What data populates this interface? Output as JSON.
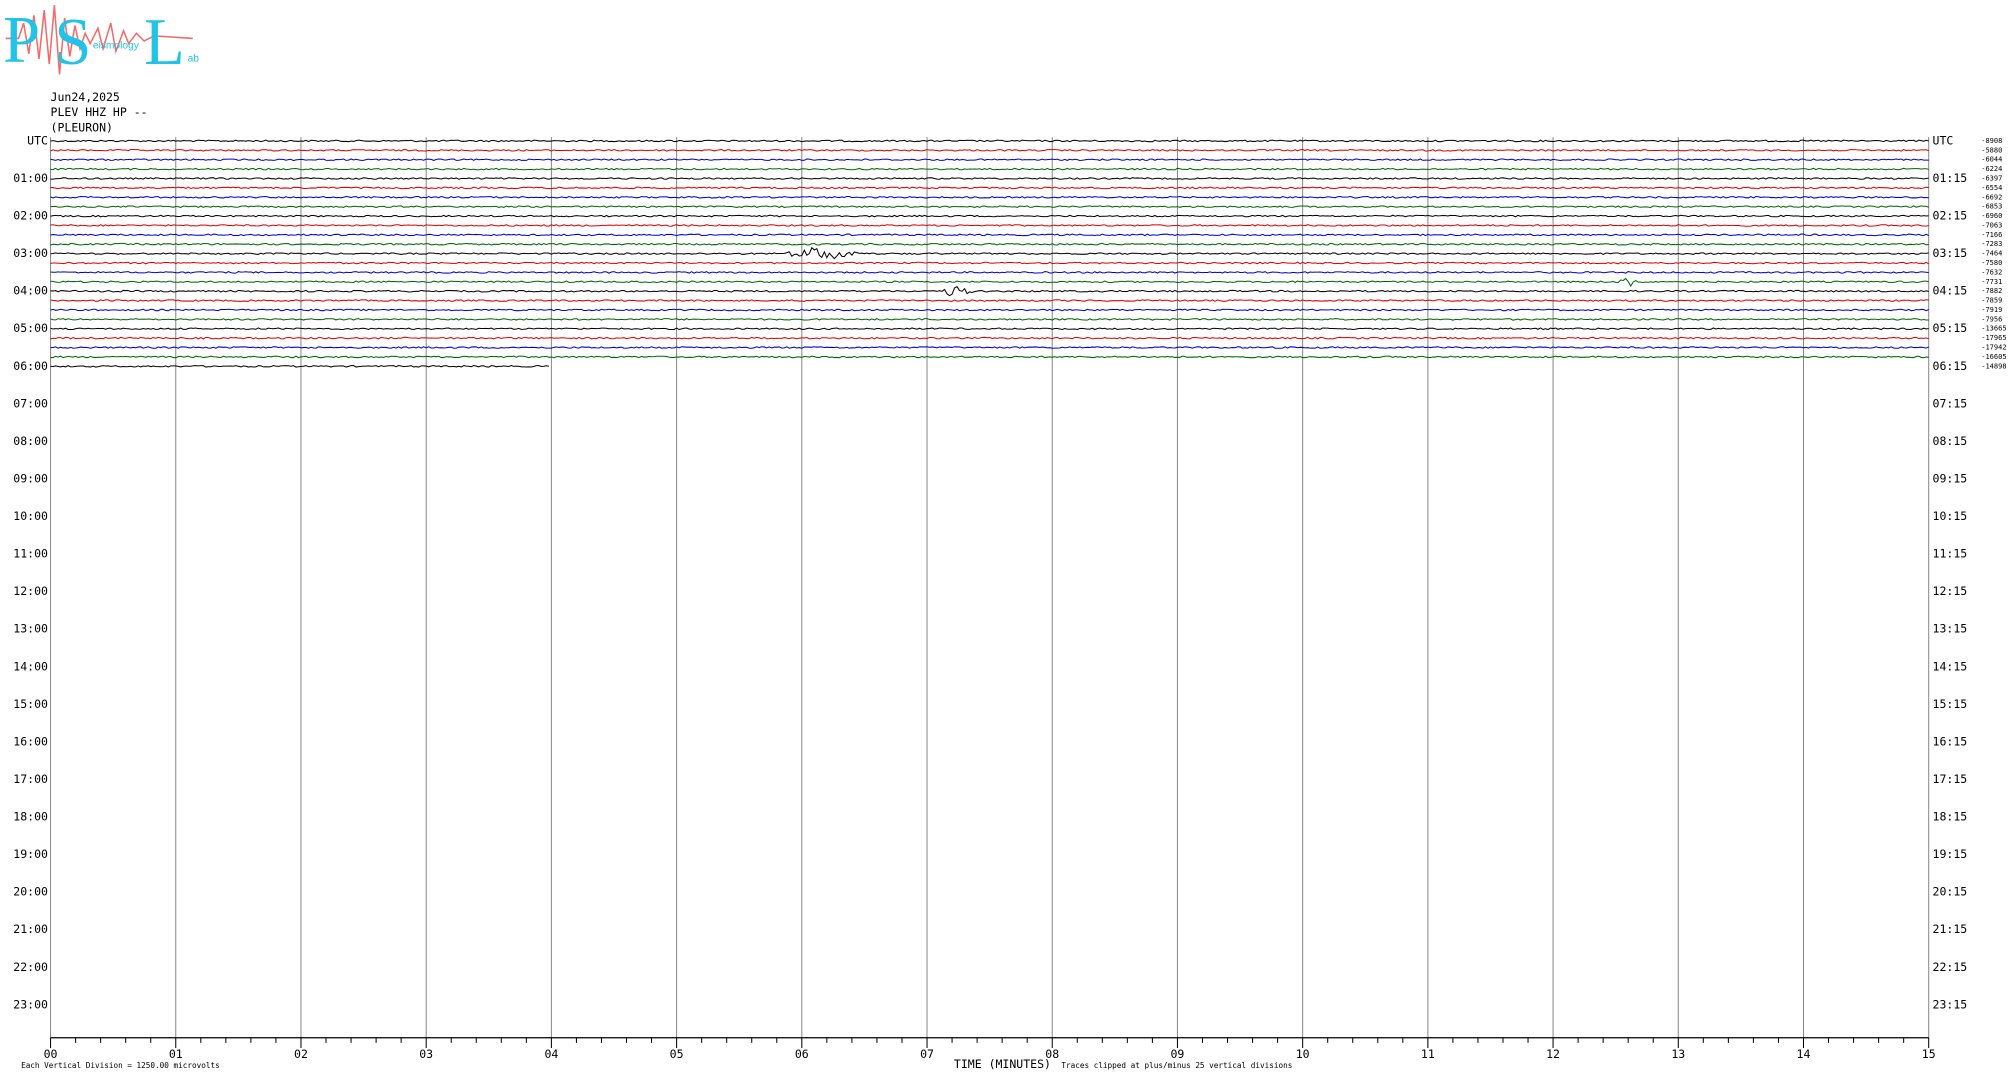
{
  "logo": {
    "letters": [
      "P",
      "S",
      "L"
    ],
    "words": [
      "eismology",
      "ab"
    ]
  },
  "header": {
    "date": "Jun24,2025",
    "station": "PLEV HHZ HP --",
    "site": "(PLEURON)"
  },
  "left_labels": [
    "UTC",
    "01:00",
    "02:00",
    "03:00",
    "04:00",
    "05:00",
    "06:00",
    "07:00",
    "08:00",
    "09:00",
    "10:00",
    "11:00",
    "12:00",
    "13:00",
    "14:00",
    "15:00",
    "16:00",
    "17:00",
    "18:00",
    "19:00",
    "20:00",
    "21:00",
    "22:00",
    "23:00"
  ],
  "right_labels": [
    "UTC",
    "01:15",
    "02:15",
    "03:15",
    "04:15",
    "05:15",
    "06:15",
    "07:15",
    "08:15",
    "09:15",
    "10:15",
    "11:15",
    "12:15",
    "13:15",
    "14:15",
    "15:15",
    "16:15",
    "17:15",
    "18:15",
    "19:15",
    "20:15",
    "21:15",
    "22:15",
    "23:15"
  ],
  "trace_offsets": [
    -8908,
    -5880,
    -6044,
    -6224,
    -6397,
    -6554,
    -6692,
    -6853,
    -6960,
    -7063,
    -7166,
    -7283,
    -7464,
    -7580,
    -7632,
    -7731,
    -7882,
    -7859,
    -7919,
    -7956,
    -13665,
    -17965,
    -17942,
    -16605,
    -14898
  ],
  "x_ticks": [
    "00",
    "01",
    "02",
    "03",
    "04",
    "05",
    "06",
    "07",
    "08",
    "09",
    "10",
    "11",
    "12",
    "13",
    "14",
    "15"
  ],
  "footer": {
    "scale": "Each Vertical Division = 1250.00 microvolts",
    "axis_title": "TIME (MINUTES)",
    "clip_note": "Traces clipped at plus/minus 25 vertical divisions"
  }
}
